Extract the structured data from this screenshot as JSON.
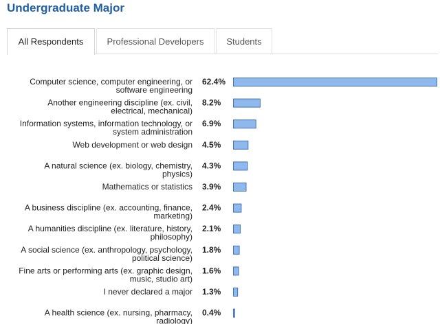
{
  "header": {
    "title": "Undergraduate Major"
  },
  "tabs": [
    {
      "label": "All Respondents",
      "active": true
    },
    {
      "label": "Professional Developers",
      "active": false
    },
    {
      "label": "Students",
      "active": false
    }
  ],
  "colors": {
    "bar_fill": "#8fb8ec",
    "bar_stroke": "#3f72b8",
    "title": "#1f5fa8"
  },
  "chart_data": {
    "type": "bar",
    "orientation": "horizontal",
    "value_suffix": "%",
    "xlim": [
      0,
      62.4
    ],
    "categories": [
      [
        "Computer science, computer engineering, or",
        "software engineering"
      ],
      [
        "Another engineering discipline (ex. civil,",
        "electrical, mechanical)"
      ],
      [
        "Information systems, information technology, or",
        "system administration"
      ],
      [
        "Web development or web design"
      ],
      [
        "A natural science (ex. biology, chemistry,",
        "physics)"
      ],
      [
        "Mathematics or statistics"
      ],
      [
        "A business discipline (ex. accounting, finance,",
        "marketing)"
      ],
      [
        "A humanities discipline (ex. literature, history,",
        "philosophy)"
      ],
      [
        "A social science (ex. anthropology, psychology,",
        "political science)"
      ],
      [
        "Fine arts or performing arts (ex. graphic design,",
        "music, studio art)"
      ],
      [
        "I never declared a major"
      ],
      [
        "A health science (ex. nursing, pharmacy,",
        "radiology)"
      ]
    ],
    "values": [
      62.4,
      8.2,
      6.9,
      4.5,
      4.3,
      3.9,
      2.4,
      2.1,
      1.8,
      1.6,
      1.3,
      0.4
    ],
    "value_labels": [
      "62.4%",
      "8.2%",
      "6.9%",
      "4.5%",
      "4.3%",
      "3.9%",
      "2.4%",
      "2.1%",
      "1.8%",
      "1.6%",
      "1.3%",
      "0.4%"
    ],
    "grid": false,
    "legend": "none"
  }
}
